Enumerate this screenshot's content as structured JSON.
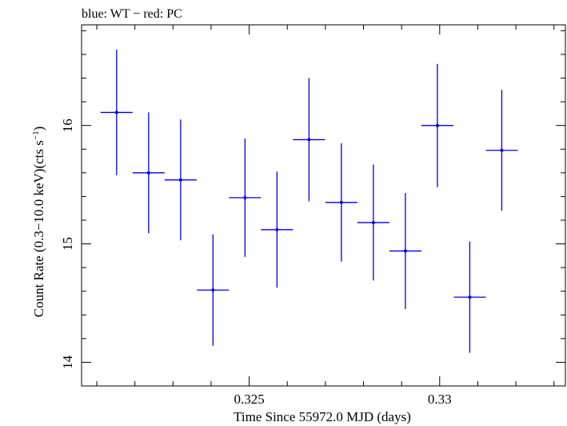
{
  "chart_data": {
    "type": "scatter",
    "title": "blue: WT − red: PC",
    "xlabel": "Time Since 55972.0 MJD (days)",
    "ylabel_main": "Count Rate (0.3−10.0 keV)(cts s",
    "ylabel_sup": "−1",
    "ylabel_close": ")",
    "xlim": [
      0.3206,
      0.3333
    ],
    "ylim": [
      13.8,
      16.85
    ],
    "x_ticks": [
      {
        "value": 0.325,
        "label": "0.325"
      },
      {
        "value": 0.33,
        "label": "0.33"
      }
    ],
    "y_ticks": [
      {
        "value": 14,
        "label": "14"
      },
      {
        "value": 15,
        "label": "15"
      },
      {
        "value": 16,
        "label": "16"
      }
    ],
    "series": [
      {
        "color": "#0000e6",
        "points": [
          {
            "x": 0.32152,
            "xerr": 0.00042,
            "y": 16.11,
            "yerr": 0.53
          },
          {
            "x": 0.32236,
            "xerr": 0.00042,
            "y": 15.6,
            "yerr": 0.51
          },
          {
            "x": 0.3232,
            "xerr": 0.00042,
            "y": 15.54,
            "yerr": 0.51
          },
          {
            "x": 0.32405,
            "xerr": 0.00042,
            "y": 14.61,
            "yerr": 0.47
          },
          {
            "x": 0.32489,
            "xerr": 0.00042,
            "y": 15.39,
            "yerr": 0.5
          },
          {
            "x": 0.32573,
            "xerr": 0.00042,
            "y": 15.12,
            "yerr": 0.49
          },
          {
            "x": 0.32657,
            "xerr": 0.00042,
            "y": 15.88,
            "yerr": 0.52
          },
          {
            "x": 0.32742,
            "xerr": 0.00042,
            "y": 15.35,
            "yerr": 0.5
          },
          {
            "x": 0.32826,
            "xerr": 0.00042,
            "y": 15.18,
            "yerr": 0.49
          },
          {
            "x": 0.3291,
            "xerr": 0.00042,
            "y": 14.94,
            "yerr": 0.49
          },
          {
            "x": 0.32994,
            "xerr": 0.00042,
            "y": 16.0,
            "yerr": 0.52
          },
          {
            "x": 0.33079,
            "xerr": 0.00042,
            "y": 14.55,
            "yerr": 0.47
          },
          {
            "x": 0.33163,
            "xerr": 0.00042,
            "y": 15.79,
            "yerr": 0.51
          }
        ]
      }
    ]
  }
}
